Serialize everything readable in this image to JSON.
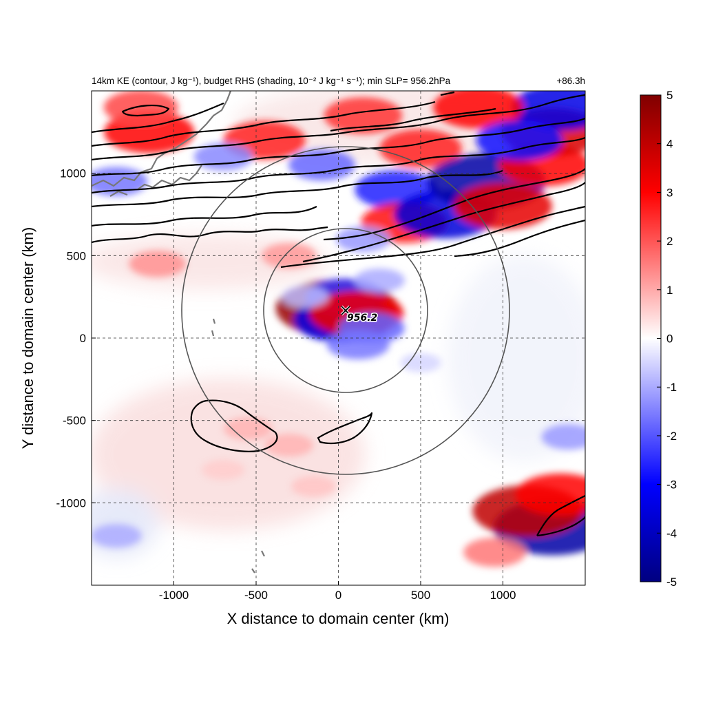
{
  "title": {
    "main": "14km KE (contour, J kg⁻¹), budget RHS (shading, 10⁻² J kg⁻¹ s⁻¹); min SLP= 956.2hPa",
    "time": "+86.3h"
  },
  "chart_data": {
    "type": "heatmap",
    "title": "14km KE (contour, J kg⁻¹), budget RHS (shading, 10⁻² J kg⁻¹ s⁻¹); min SLP= 956.2hPa",
    "xlabel": "X distance to domain center (km)",
    "ylabel": "Y distance to domain center (km)",
    "xlim": [
      -1500,
      1500
    ],
    "ylim": [
      -1500,
      1500
    ],
    "x_ticks": [
      -1000,
      -500,
      0,
      500,
      1000
    ],
    "y_ticks": [
      -1000,
      -500,
      0,
      500,
      1000
    ],
    "grid": true,
    "colorbar": {
      "min": -5,
      "max": 5,
      "ticks": [
        5,
        4,
        3,
        2,
        1,
        0,
        -1,
        -2,
        -3,
        -4,
        -5
      ],
      "colormap": [
        "#000080",
        "#0000ff",
        "#ffffff",
        "#ff0000",
        "#800000"
      ]
    },
    "storm_center": {
      "x": 50,
      "y": 170,
      "min_slp_label": "956.2"
    },
    "radius_rings_km": [
      500,
      1000
    ],
    "features": [
      {
        "kind": "positive",
        "x": -1150,
        "y": 1250,
        "value": 3.0
      },
      {
        "kind": "positive",
        "x": -450,
        "y": 1200,
        "value": 2.6
      },
      {
        "kind": "positive",
        "x": -1200,
        "y": 1400,
        "value": 2.2
      },
      {
        "kind": "negative",
        "x": -1350,
        "y": 950,
        "value": -1.6
      },
      {
        "kind": "negative",
        "x": -700,
        "y": 1100,
        "value": -1.4
      },
      {
        "kind": "negative",
        "x": -100,
        "y": 1050,
        "value": -1.8
      },
      {
        "kind": "negative",
        "x": 350,
        "y": 900,
        "value": -2.6
      },
      {
        "kind": "positive",
        "x": 150,
        "y": 1350,
        "value": 2.4
      },
      {
        "kind": "positive",
        "x": 400,
        "y": 700,
        "value": 2.8
      },
      {
        "kind": "negative",
        "x": 650,
        "y": 750,
        "value": -3.6
      },
      {
        "kind": "positive",
        "x": 500,
        "y": 1150,
        "value": 2.6
      },
      {
        "kind": "negative",
        "x": 900,
        "y": 950,
        "value": -4.4
      },
      {
        "kind": "positive",
        "x": 1000,
        "y": 800,
        "value": 3.4
      },
      {
        "kind": "positive",
        "x": 1250,
        "y": 1050,
        "value": 3.0
      },
      {
        "kind": "positive",
        "x": 1300,
        "y": 1250,
        "value": 3.6
      },
      {
        "kind": "negative",
        "x": 1350,
        "y": 1400,
        "value": -3.4
      },
      {
        "kind": "positive",
        "x": 850,
        "y": 1400,
        "value": 3.0
      },
      {
        "kind": "negative",
        "x": 1100,
        "y": 1200,
        "value": -2.8
      },
      {
        "kind": "positive",
        "x": -300,
        "y": 500,
        "value": 1.2
      },
      {
        "kind": "positive",
        "x": -1100,
        "y": 450,
        "value": 1.3
      },
      {
        "kind": "negative",
        "x": 150,
        "y": 600,
        "value": -1.2
      },
      {
        "kind": "positive",
        "x": -10,
        "y": 180,
        "value": 4.6
      },
      {
        "kind": "negative",
        "x": 30,
        "y": 110,
        "value": -3.4
      },
      {
        "kind": "negative",
        "x": 40,
        "y": 250,
        "value": -2.4
      },
      {
        "kind": "positive",
        "x": 110,
        "y": 150,
        "value": 3.2
      },
      {
        "kind": "negative",
        "x": 200,
        "y": 60,
        "value": -1.8
      },
      {
        "kind": "negative",
        "x": 120,
        "y": -40,
        "value": -1.6
      },
      {
        "kind": "negative",
        "x": 250,
        "y": 350,
        "value": -1.0
      },
      {
        "kind": "negative",
        "x": -200,
        "y": 250,
        "value": -0.8
      },
      {
        "kind": "positive",
        "x": -550,
        "y": -550,
        "value": 0.9
      },
      {
        "kind": "positive",
        "x": -300,
        "y": -650,
        "value": 0.9
      },
      {
        "kind": "positive",
        "x": -150,
        "y": -900,
        "value": 0.7
      },
      {
        "kind": "positive",
        "x": -700,
        "y": -800,
        "value": 0.6
      },
      {
        "kind": "negative",
        "x": -1350,
        "y": -1200,
        "value": -1.0
      },
      {
        "kind": "negative",
        "x": 1300,
        "y": -1150,
        "value": -4.4
      },
      {
        "kind": "positive",
        "x": 1150,
        "y": -1050,
        "value": 4.0
      },
      {
        "kind": "positive",
        "x": 1350,
        "y": -950,
        "value": 3.0
      },
      {
        "kind": "positive",
        "x": 950,
        "y": -1300,
        "value": 1.6
      },
      {
        "kind": "negative",
        "x": 1400,
        "y": -600,
        "value": -1.2
      },
      {
        "kind": "negative",
        "x": 500,
        "y": -150,
        "value": -0.5
      }
    ]
  }
}
